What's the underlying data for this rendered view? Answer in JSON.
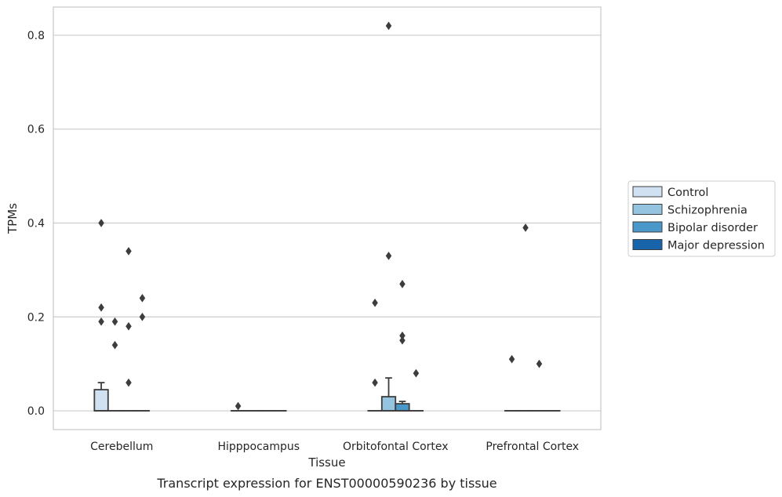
{
  "chart_data": {
    "type": "box",
    "title": "",
    "caption": "Transcript expression for ENST00000590236 by tissue",
    "xlabel": "Tissue",
    "ylabel": "TPMs",
    "ylim": [
      -0.04,
      0.86
    ],
    "yticks": [
      0.0,
      0.2,
      0.4,
      0.6,
      0.8
    ],
    "ytick_labels": [
      "0.0",
      "0.2",
      "0.4",
      "0.6",
      "0.8"
    ],
    "grid": "horizontal",
    "legend_position": "right",
    "categories": [
      "Cerebellum",
      "Hipppocampus",
      "Orbitofontal Cortex",
      "Prefrontal Cortex"
    ],
    "series": [
      {
        "name": "Control",
        "color": "#d0e1f2",
        "boxes": [
          {
            "q1": 0.0,
            "median": 0.0,
            "q3": 0.045,
            "whisker_low": 0.0,
            "whisker_high": 0.06,
            "outliers": [
              0.4,
              0.22,
              0.19
            ]
          },
          {
            "q1": 0.0,
            "median": 0.0,
            "q3": 0.0,
            "whisker_low": 0.0,
            "whisker_high": 0.0,
            "outliers": [
              0.01
            ]
          },
          {
            "q1": 0.0,
            "median": 0.0,
            "q3": 0.0,
            "whisker_low": 0.0,
            "whisker_high": 0.0,
            "outliers": [
              0.23,
              0.06
            ]
          },
          {
            "q1": 0.0,
            "median": 0.0,
            "q3": 0.0,
            "whisker_low": 0.0,
            "whisker_high": 0.0,
            "outliers": [
              0.11
            ]
          }
        ]
      },
      {
        "name": "Schizophrenia",
        "color": "#94c4df",
        "boxes": [
          {
            "q1": 0.0,
            "median": 0.0,
            "q3": 0.0,
            "whisker_low": 0.0,
            "whisker_high": 0.0,
            "outliers": [
              0.19,
              0.14
            ]
          },
          {
            "q1": 0.0,
            "median": 0.0,
            "q3": 0.0,
            "whisker_low": 0.0,
            "whisker_high": 0.0,
            "outliers": []
          },
          {
            "q1": 0.0,
            "median": 0.0,
            "q3": 0.03,
            "whisker_low": 0.0,
            "whisker_high": 0.07,
            "outliers": [
              0.82,
              0.33
            ]
          },
          {
            "q1": 0.0,
            "median": 0.0,
            "q3": 0.0,
            "whisker_low": 0.0,
            "whisker_high": 0.0,
            "outliers": [
              0.39
            ]
          }
        ]
      },
      {
        "name": "Bipolar disorder",
        "color": "#4a98c9",
        "boxes": [
          {
            "q1": 0.0,
            "median": 0.0,
            "q3": 0.0,
            "whisker_low": 0.0,
            "whisker_high": 0.0,
            "outliers": [
              0.34,
              0.18,
              0.06
            ]
          },
          {
            "q1": 0.0,
            "median": 0.0,
            "q3": 0.0,
            "whisker_low": 0.0,
            "whisker_high": 0.0,
            "outliers": []
          },
          {
            "q1": 0.0,
            "median": 0.0,
            "q3": 0.015,
            "whisker_low": 0.0,
            "whisker_high": 0.02,
            "outliers": [
              0.27,
              0.16,
              0.15
            ]
          },
          {
            "q1": 0.0,
            "median": 0.0,
            "q3": 0.0,
            "whisker_low": 0.0,
            "whisker_high": 0.0,
            "outliers": [
              0.1
            ]
          }
        ]
      },
      {
        "name": "Major depression",
        "color": "#1764ab",
        "boxes": [
          {
            "q1": 0.0,
            "median": 0.0,
            "q3": 0.0,
            "whisker_low": 0.0,
            "whisker_high": 0.0,
            "outliers": [
              0.24,
              0.2
            ]
          },
          {
            "q1": 0.0,
            "median": 0.0,
            "q3": 0.0,
            "whisker_low": 0.0,
            "whisker_high": 0.0,
            "outliers": []
          },
          {
            "q1": 0.0,
            "median": 0.0,
            "q3": 0.0,
            "whisker_low": 0.0,
            "whisker_high": 0.0,
            "outliers": [
              0.08
            ]
          },
          {
            "q1": 0.0,
            "median": 0.0,
            "q3": 0.0,
            "whisker_low": 0.0,
            "whisker_high": 0.0,
            "outliers": []
          }
        ]
      }
    ]
  }
}
